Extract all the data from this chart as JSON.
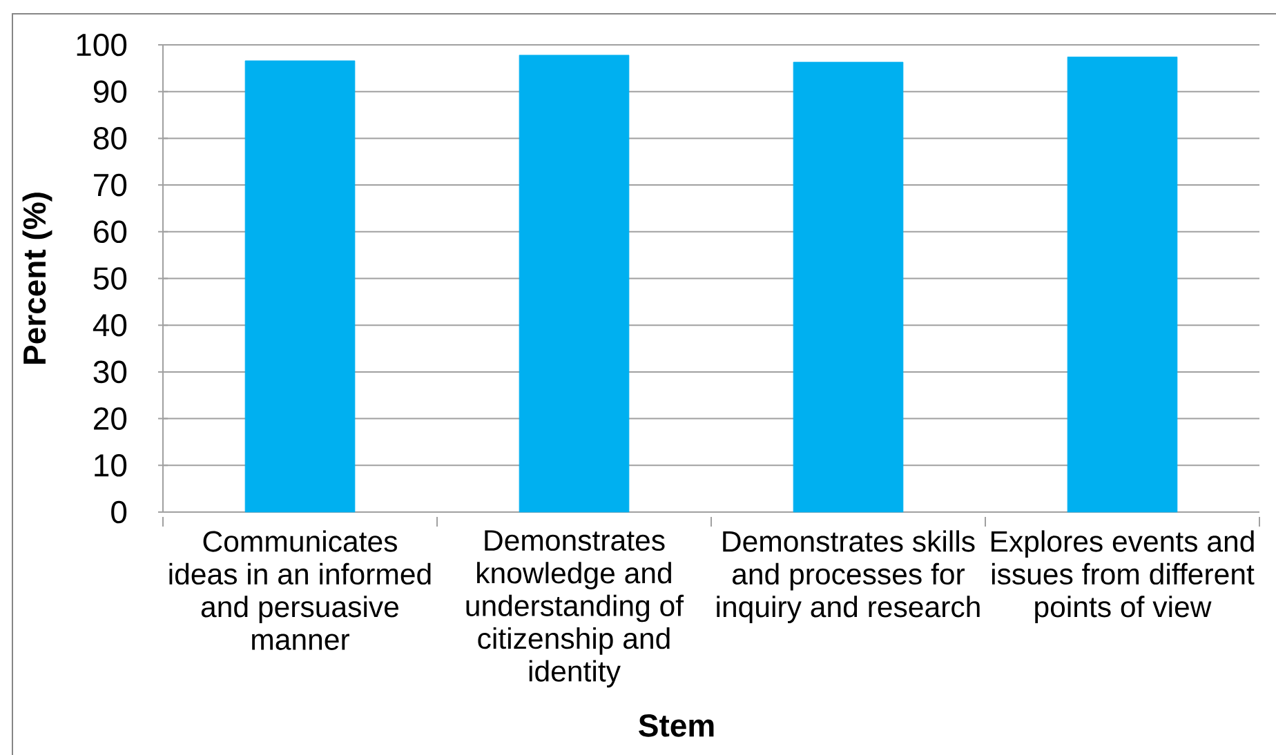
{
  "chart_data": {
    "type": "bar",
    "xlabel": "Stem",
    "ylabel": "Percent (%)",
    "categories": [
      "Communicates ideas in an informed and persuasive manner",
      "Demonstrates knowledge and understanding of citizenship and identity",
      "Demonstrates skills and processes for inquiry and research",
      "Explores events and issues from different points of view"
    ],
    "values": [
      96.6,
      97.8,
      96.3,
      97.4
    ],
    "color": "#00b0f0",
    "ylim": [
      0,
      100
    ],
    "yticks": [
      0,
      10,
      20,
      30,
      40,
      50,
      60,
      70,
      80,
      90,
      100
    ],
    "grid": "y"
  }
}
